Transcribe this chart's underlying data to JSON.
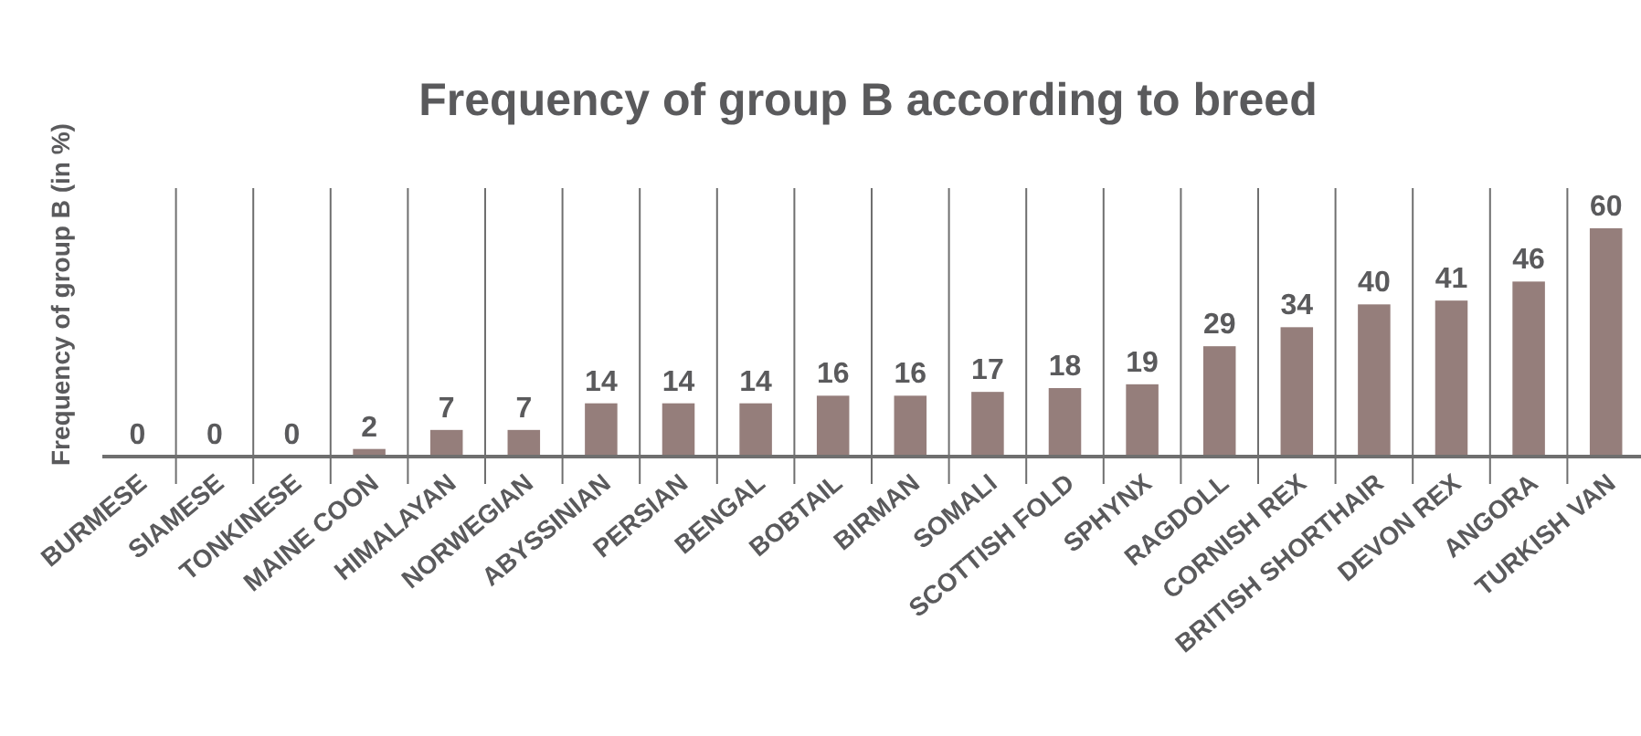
{
  "chart_data": {
    "type": "bar",
    "title": "Frequency of group B according to breed",
    "ylabel": "Frequency of group B (in %)",
    "categories": [
      "BURMESE",
      "SIAMESE",
      "TONKINESE",
      "MAINE COON",
      "HIMALAYAN",
      "NORWEGIAN",
      "ABYSSINIAN",
      "PERSIAN",
      "BENGAL",
      "BOBTAIL",
      "BIRMAN",
      "SOMALI",
      "SCOTTISH FOLD",
      "SPHYNX",
      "RAGDOLL",
      "CORNISH REX",
      "BRITISH SHORTHAIR",
      "DEVON REX",
      "ANGORA",
      "TURKISH VAN"
    ],
    "values": [
      0,
      0,
      0,
      2,
      7,
      7,
      14,
      14,
      14,
      16,
      16,
      17,
      18,
      19,
      29,
      34,
      40,
      41,
      46,
      60
    ],
    "color": "#957e7b",
    "data_labels": true,
    "grid": "x"
  }
}
